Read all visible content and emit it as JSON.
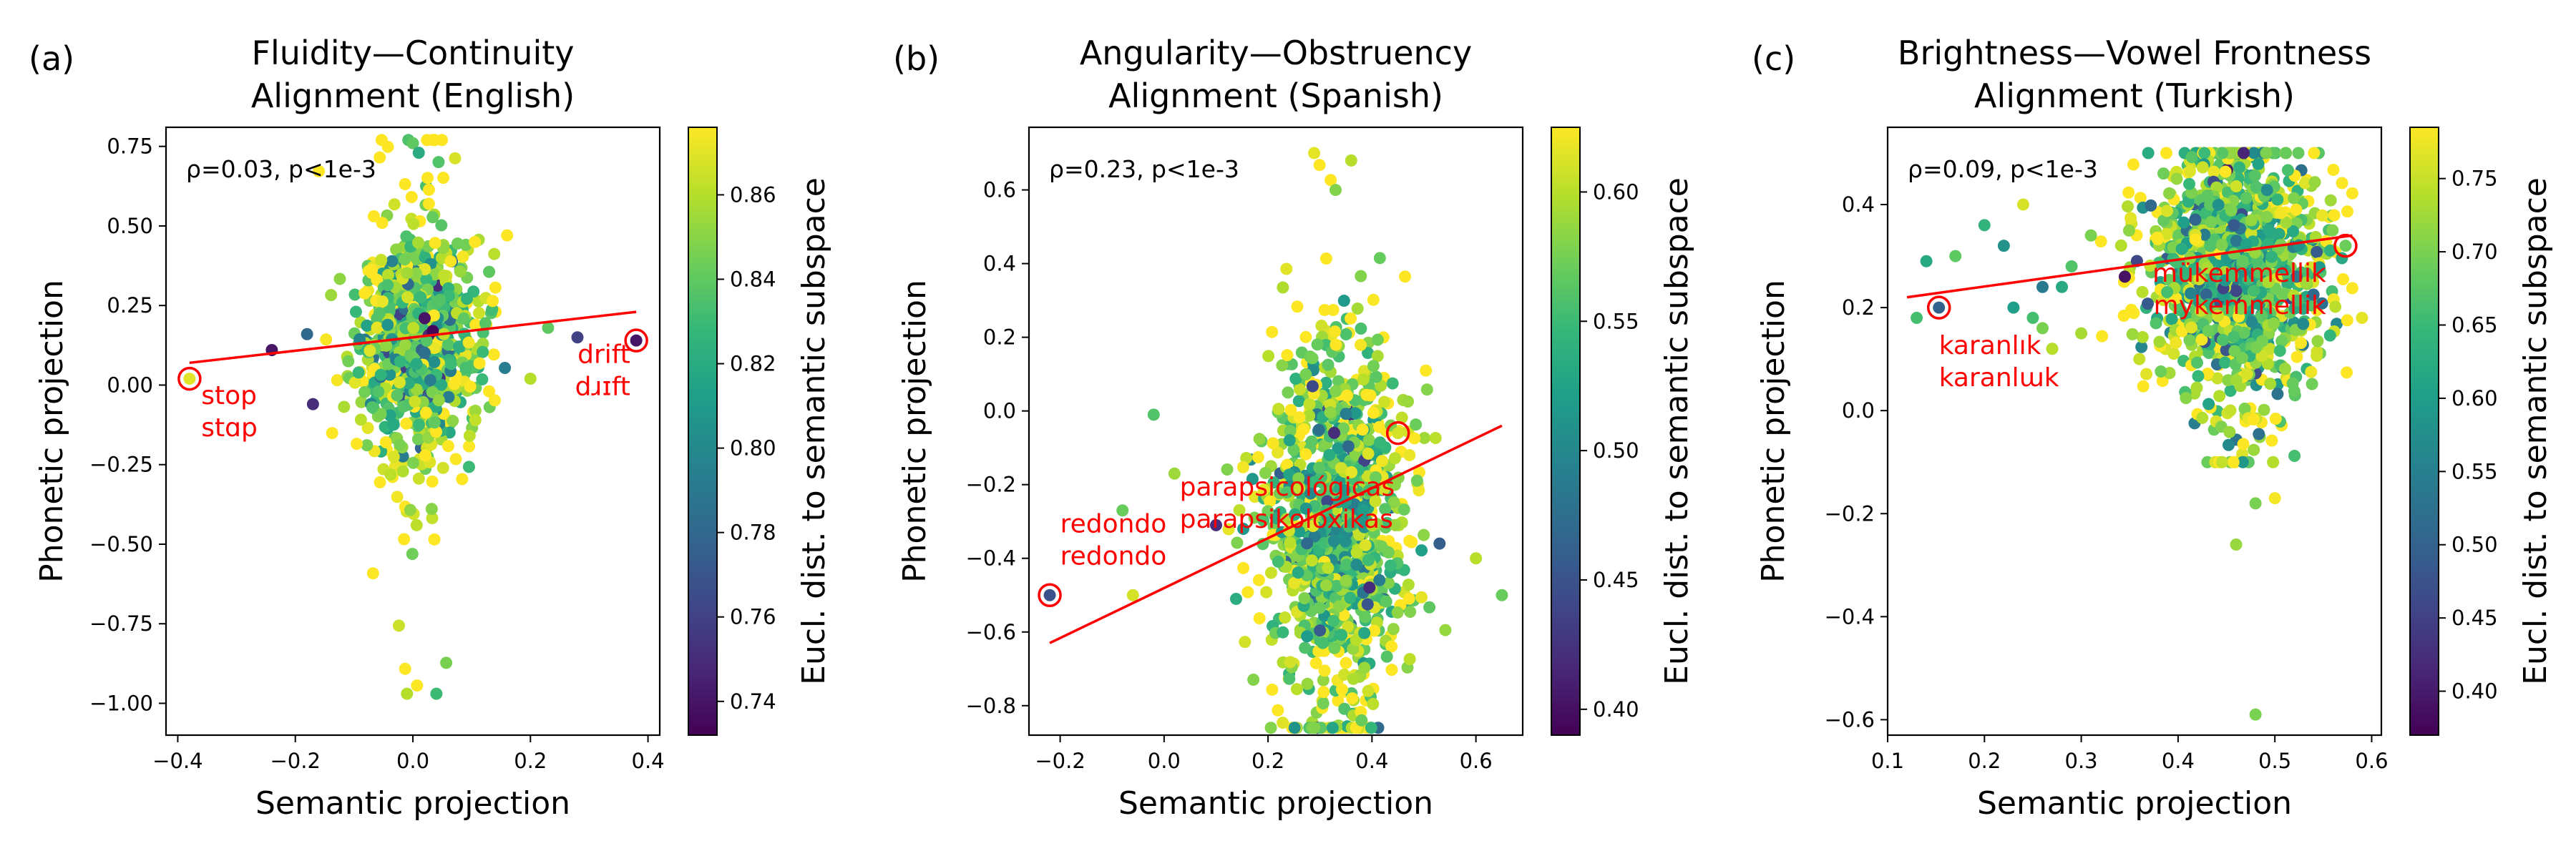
{
  "chart_data": [
    {
      "type": "scatter",
      "panel_label": "(a)",
      "title_lines": [
        "Fluidity—Continuity",
        "Alignment (English)"
      ],
      "xlabel": "Semantic projection",
      "ylabel": "Phonetic projection",
      "colorbar_label": "Eucl. dist. to semantic subspace",
      "annotation": "ρ=0.03, p<1e-3",
      "xlim": [
        -0.42,
        0.42
      ],
      "ylim": [
        -1.1,
        0.81
      ],
      "xticks": [
        -0.4,
        -0.2,
        0.0,
        0.2,
        0.4
      ],
      "xtick_labels": [
        "−0.4",
        "−0.2",
        "0.0",
        "0.2",
        "0.4"
      ],
      "yticks": [
        0.75,
        0.5,
        0.25,
        0.0,
        -0.25,
        -0.5,
        -0.75,
        -1.0
      ],
      "ytick_labels": [
        "0.75",
        "0.50",
        "0.25",
        "0.00",
        "−0.25",
        "−0.50",
        "−0.75",
        "−1.00"
      ],
      "clim": [
        0.732,
        0.876
      ],
      "cticks": [
        0.74,
        0.76,
        0.78,
        0.8,
        0.82,
        0.84,
        0.86
      ],
      "ctick_labels": [
        "0.74",
        "0.76",
        "0.78",
        "0.80",
        "0.82",
        "0.84",
        "0.86"
      ],
      "fit_line": {
        "x": [
          -0.38,
          0.38
        ],
        "y": [
          0.07,
          0.23
        ],
        "color": "#ff0000"
      },
      "cloud": {
        "cx": 0.01,
        "cy": 0.13,
        "sx": 0.055,
        "sy": 0.16,
        "xmin": -0.2,
        "xmax": 0.25,
        "ymin": -1.05,
        "ymax": 0.77,
        "n": 900,
        "seed": 11
      },
      "points": [
        {
          "x": -0.38,
          "y": 0.02,
          "c": 0.87
        },
        {
          "x": 0.38,
          "y": 0.14,
          "c": 0.74
        },
        {
          "x": -0.24,
          "y": 0.11,
          "c": 0.74
        },
        {
          "x": -0.18,
          "y": 0.16,
          "c": 0.78
        },
        {
          "x": -0.17,
          "y": -0.06,
          "c": 0.75
        },
        {
          "x": 0.28,
          "y": 0.15,
          "c": 0.76
        },
        {
          "x": 0.23,
          "y": 0.18,
          "c": 0.84
        },
        {
          "x": 0.2,
          "y": 0.02,
          "c": 0.86
        },
        {
          "x": -0.01,
          "y": -0.97,
          "c": 0.86
        },
        {
          "x": 0.04,
          "y": -0.97,
          "c": 0.83
        },
        {
          "x": 0.0,
          "y": 0.76,
          "c": 0.84
        },
        {
          "x": 0.01,
          "y": 0.73,
          "c": 0.82
        },
        {
          "x": 0.02,
          "y": 0.21,
          "c": 0.74
        }
      ],
      "highlights": [
        {
          "x": -0.38,
          "y": 0.02,
          "words": [
            "stop",
            "stɑp"
          ],
          "dx": 0.02,
          "dy": -0.08,
          "anchor": "start"
        },
        {
          "x": 0.38,
          "y": 0.14,
          "words": [
            "drift",
            "dɹɪft"
          ],
          "dx": -0.01,
          "dy": -0.07,
          "anchor": "end"
        }
      ]
    },
    {
      "type": "scatter",
      "panel_label": "(b)",
      "title_lines": [
        "Angularity—Obstruency",
        "Alignment (Spanish)"
      ],
      "xlabel": "Semantic projection",
      "ylabel": "Phonetic projection",
      "colorbar_label": "Eucl. dist. to semantic subspace",
      "annotation": "ρ=0.23, p<1e-3",
      "xlim": [
        -0.26,
        0.69
      ],
      "ylim": [
        -0.88,
        0.77
      ],
      "xticks": [
        -0.2,
        0.0,
        0.2,
        0.4,
        0.6
      ],
      "xtick_labels": [
        "−0.2",
        "0.0",
        "0.2",
        "0.4",
        "0.6"
      ],
      "yticks": [
        0.6,
        0.4,
        0.2,
        0.0,
        -0.2,
        -0.4,
        -0.6,
        -0.8
      ],
      "ytick_labels": [
        "0.6",
        "0.4",
        "0.2",
        "0.0",
        "−0.2",
        "−0.4",
        "−0.6",
        "−0.8"
      ],
      "clim": [
        0.39,
        0.625
      ],
      "cticks": [
        0.4,
        0.45,
        0.5,
        0.55,
        0.6
      ],
      "ctick_labels": [
        "0.40",
        "0.45",
        "0.50",
        "0.55",
        "0.60"
      ],
      "fit_line": {
        "x": [
          -0.22,
          0.65
        ],
        "y": [
          -0.63,
          -0.04
        ],
        "color": "#ff0000"
      },
      "cloud": {
        "cx": 0.33,
        "cy": -0.3,
        "sx": 0.07,
        "sy": 0.22,
        "xmin": 0.0,
        "xmax": 0.55,
        "ymin": -0.86,
        "ymax": 0.7,
        "n": 1100,
        "seed": 23
      },
      "points": [
        {
          "x": -0.22,
          "y": -0.5,
          "c": 0.45
        },
        {
          "x": 0.45,
          "y": -0.06,
          "c": 0.61
        },
        {
          "x": -0.08,
          "y": -0.27,
          "c": 0.57
        },
        {
          "x": -0.02,
          "y": -0.01,
          "c": 0.56
        },
        {
          "x": 0.02,
          "y": -0.17,
          "c": 0.59
        },
        {
          "x": 0.65,
          "y": -0.5,
          "c": 0.57
        },
        {
          "x": 0.6,
          "y": -0.4,
          "c": 0.6
        },
        {
          "x": 0.53,
          "y": -0.36,
          "c": 0.46
        },
        {
          "x": -0.06,
          "y": -0.5,
          "c": 0.61
        },
        {
          "x": 0.36,
          "y": 0.68,
          "c": 0.6
        },
        {
          "x": 0.33,
          "y": 0.6,
          "c": 0.58
        },
        {
          "x": 0.38,
          "y": -0.84,
          "c": 0.57
        },
        {
          "x": 0.1,
          "y": -0.31,
          "c": 0.42
        }
      ],
      "highlights": [
        {
          "x": -0.22,
          "y": -0.5,
          "words": [
            "redondo",
            "redondo"
          ],
          "dx": 0.02,
          "dy": 0.17,
          "anchor": "start"
        },
        {
          "x": 0.45,
          "y": -0.06,
          "words": [
            "parapsicológicas",
            "parapsikoloxikas"
          ],
          "dx": -0.42,
          "dy": -0.17,
          "anchor": "start"
        }
      ]
    },
    {
      "type": "scatter",
      "panel_label": "(c)",
      "title_lines": [
        "Brightness—Vowel Frontness",
        "Alignment (Turkish)"
      ],
      "xlabel": "Semantic projection",
      "ylabel": "Phonetic projection",
      "colorbar_label": "Eucl. dist. to semantic subspace",
      "annotation": "ρ=0.09, p<1e-3",
      "xlim": [
        0.1,
        0.61
      ],
      "ylim": [
        -0.63,
        0.55
      ],
      "xticks": [
        0.1,
        0.2,
        0.3,
        0.4,
        0.5,
        0.6
      ],
      "xtick_labels": [
        "0.1",
        "0.2",
        "0.3",
        "0.4",
        "0.5",
        "0.6"
      ],
      "yticks": [
        0.4,
        0.2,
        0.0,
        -0.2,
        -0.4,
        -0.6
      ],
      "ytick_labels": [
        "0.4",
        "0.2",
        "0.0",
        "−0.2",
        "−0.4",
        "−0.6"
      ],
      "clim": [
        0.37,
        0.785
      ],
      "cticks": [
        0.4,
        0.45,
        0.5,
        0.55,
        0.6,
        0.65,
        0.7,
        0.75
      ],
      "ctick_labels": [
        "0.40",
        "0.45",
        "0.50",
        "0.55",
        "0.60",
        "0.65",
        "0.70",
        "0.75"
      ],
      "fit_line": {
        "x": [
          0.12,
          0.58
        ],
        "y": [
          0.22,
          0.34
        ],
        "color": "#ff0000"
      },
      "cloud": {
        "cx": 0.46,
        "cy": 0.28,
        "sx": 0.045,
        "sy": 0.12,
        "xmin": 0.3,
        "xmax": 0.58,
        "ymin": -0.1,
        "ymax": 0.5,
        "n": 1200,
        "seed": 37
      },
      "points": [
        {
          "x": 0.153,
          "y": 0.2,
          "c": 0.5
        },
        {
          "x": 0.573,
          "y": 0.32,
          "c": 0.69
        },
        {
          "x": 0.13,
          "y": 0.18,
          "c": 0.66
        },
        {
          "x": 0.14,
          "y": 0.29,
          "c": 0.62
        },
        {
          "x": 0.17,
          "y": 0.3,
          "c": 0.68
        },
        {
          "x": 0.2,
          "y": 0.36,
          "c": 0.64
        },
        {
          "x": 0.22,
          "y": 0.32,
          "c": 0.58
        },
        {
          "x": 0.23,
          "y": 0.2,
          "c": 0.6
        },
        {
          "x": 0.25,
          "y": 0.18,
          "c": 0.66
        },
        {
          "x": 0.26,
          "y": 0.16,
          "c": 0.7
        },
        {
          "x": 0.27,
          "y": 0.12,
          "c": 0.74
        },
        {
          "x": 0.24,
          "y": 0.4,
          "c": 0.76
        },
        {
          "x": 0.26,
          "y": 0.24,
          "c": 0.54
        },
        {
          "x": 0.28,
          "y": 0.24,
          "c": 0.62
        },
        {
          "x": 0.29,
          "y": 0.28,
          "c": 0.67
        },
        {
          "x": 0.3,
          "y": 0.15,
          "c": 0.73
        },
        {
          "x": 0.31,
          "y": 0.34,
          "c": 0.7
        },
        {
          "x": 0.345,
          "y": 0.26,
          "c": 0.39
        },
        {
          "x": 0.36,
          "y": 0.1,
          "c": 0.75
        },
        {
          "x": 0.48,
          "y": -0.18,
          "c": 0.7
        },
        {
          "x": 0.46,
          "y": -0.26,
          "c": 0.72
        },
        {
          "x": 0.48,
          "y": -0.59,
          "c": 0.7
        },
        {
          "x": 0.5,
          "y": -0.17,
          "c": 0.78
        },
        {
          "x": 0.59,
          "y": 0.18,
          "c": 0.77
        }
      ],
      "highlights": [
        {
          "x": 0.153,
          "y": 0.2,
          "words": [
            "karanlık",
            "karanlɯk"
          ],
          "dx": 0.0,
          "dy": -0.09,
          "anchor": "start"
        },
        {
          "x": 0.573,
          "y": 0.32,
          "words": [
            "mükemmellik",
            "mykemmellik"
          ],
          "dx": -0.02,
          "dy": -0.07,
          "anchor": "end"
        }
      ]
    }
  ]
}
